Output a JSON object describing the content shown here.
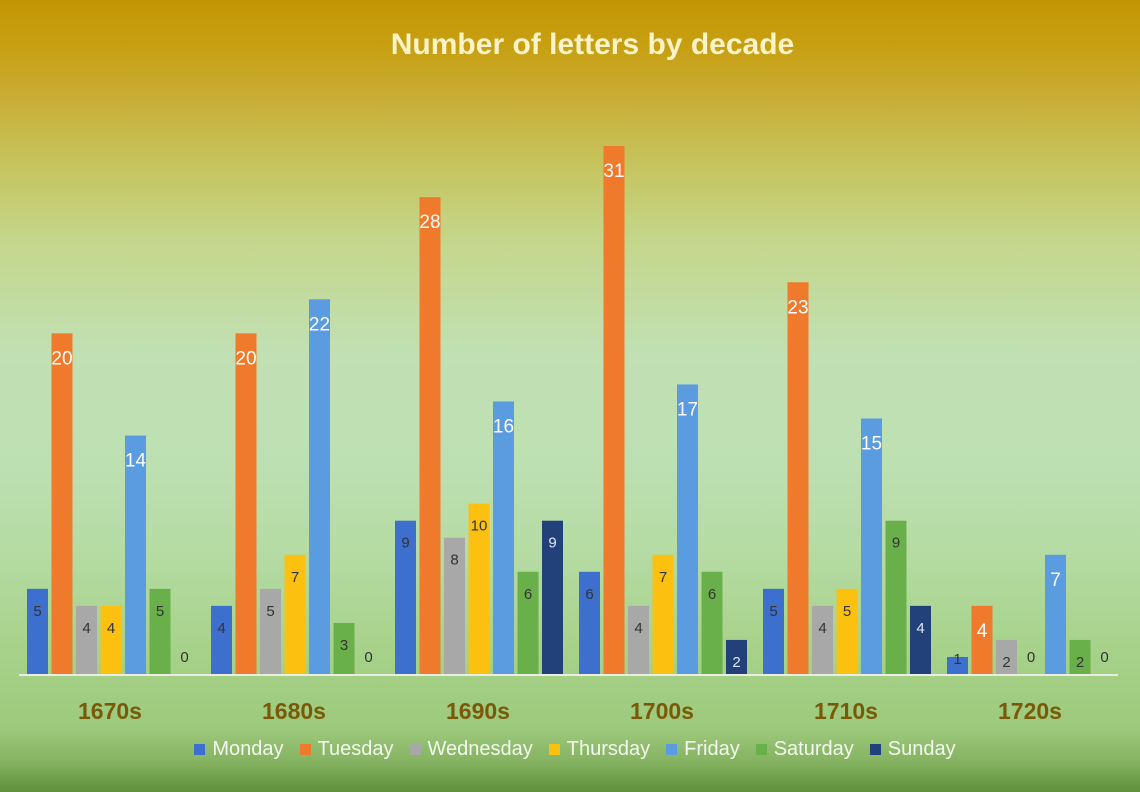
{
  "chart_data": {
    "type": "bar",
    "title": "Number of letters by decade",
    "categories": [
      "1670s",
      "1680s",
      "1690s",
      "1700s",
      "1710s",
      "1720s"
    ],
    "series": [
      {
        "name": "Monday",
        "color": "#3d6fcf",
        "values": [
          5,
          4,
          9,
          6,
          5,
          1
        ]
      },
      {
        "name": "Tuesday",
        "color": "#f07a2c",
        "values": [
          20,
          20,
          28,
          31,
          23,
          4
        ]
      },
      {
        "name": "Wednesday",
        "color": "#a8a8a8",
        "values": [
          4,
          5,
          8,
          4,
          4,
          2
        ]
      },
      {
        "name": "Thursday",
        "color": "#fcc010",
        "values": [
          4,
          7,
          10,
          7,
          5,
          0
        ]
      },
      {
        "name": "Friday",
        "color": "#5b9be0",
        "values": [
          14,
          22,
          16,
          17,
          15,
          7
        ]
      },
      {
        "name": "Saturday",
        "color": "#6ab04a",
        "values": [
          5,
          3,
          6,
          6,
          9,
          2
        ]
      },
      {
        "name": "Sunday",
        "color": "#22407a",
        "values": [
          0,
          0,
          9,
          2,
          4,
          0
        ]
      }
    ],
    "ylim": [
      0,
      31
    ],
    "legend_position": "bottom",
    "grid": false
  }
}
